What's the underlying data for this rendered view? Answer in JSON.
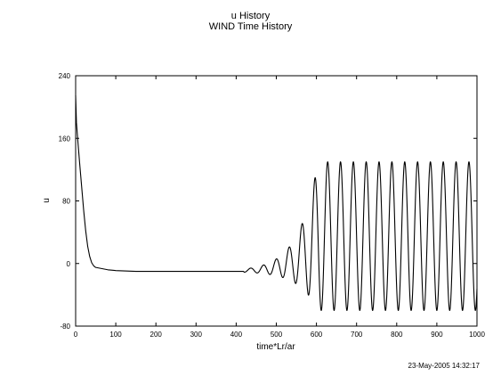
{
  "chart_data": {
    "type": "line",
    "title": "u History",
    "subtitle": "WIND Time History",
    "xlabel": "time*Lr/ar",
    "ylabel": "u",
    "xlim": [
      0,
      1000
    ],
    "ylim": [
      -80,
      240
    ],
    "xticks": [
      0,
      100,
      200,
      300,
      400,
      500,
      600,
      700,
      800,
      900,
      1000
    ],
    "yticks": [
      -80,
      0,
      80,
      160,
      240
    ],
    "grid": false,
    "legend": "none",
    "line_color": "#000000",
    "series": [
      {
        "x": [
          0,
          2,
          5,
          10,
          15,
          20,
          25,
          30,
          35,
          40,
          45,
          50,
          60,
          80,
          100,
          150,
          200,
          300,
          400
        ],
        "values": [
          215,
          180,
          160,
          128,
          98,
          68,
          42,
          22,
          9,
          1,
          -3,
          -5,
          -6,
          -8,
          -9,
          -10,
          -10,
          -10,
          -10
        ]
      }
    ],
    "oscillation": {
      "start_x": 420,
      "period": 32,
      "center": 35,
      "half_amplitude_initial": 2,
      "half_amplitude_saturated": 95,
      "saturation_x": 660,
      "growth_rate": 0.021,
      "peak_value": 130,
      "trough_value": -60
    }
  },
  "footer": {
    "timestamp": "23-May-2005 14:32:17"
  }
}
